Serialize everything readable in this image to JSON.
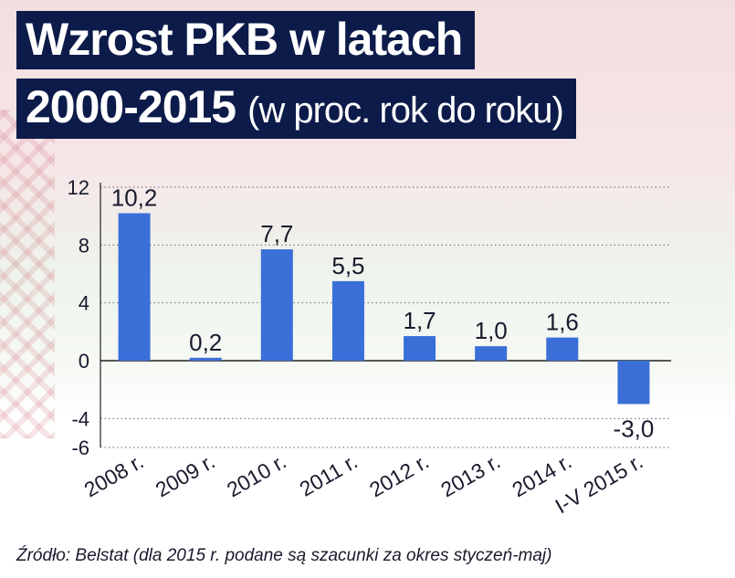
{
  "title": {
    "line1": "Wzrost PKB w latach",
    "line2_bold": "2000-2015",
    "line2_light": "(w proc. rok do roku)"
  },
  "source": "Źródło: Belstat (dla 2015 r. podane są szacunki za okres styczeń-maj)",
  "colors": {
    "bar": "#3a6fd8",
    "title_bg": "#0d1b4a",
    "text": "#1a1a2e"
  },
  "chart_data": {
    "type": "bar",
    "categories": [
      "2008 r.",
      "2009 r.",
      "2010 r.",
      "2011 r.",
      "2012 r.",
      "2013 r.",
      "2014 r.",
      "I-V 2015 r."
    ],
    "values": [
      10.2,
      0.2,
      7.7,
      5.5,
      1.7,
      1.0,
      1.6,
      -3.0
    ],
    "value_labels": [
      "10,2",
      "0,2",
      "7,7",
      "5,5",
      "1,7",
      "1,0",
      "1,6",
      "-3,0"
    ],
    "yticks": [
      12,
      8,
      4,
      0,
      -4,
      -6
    ],
    "ylim": [
      -6,
      12
    ],
    "grid": true,
    "xlabel": "",
    "ylabel": ""
  }
}
